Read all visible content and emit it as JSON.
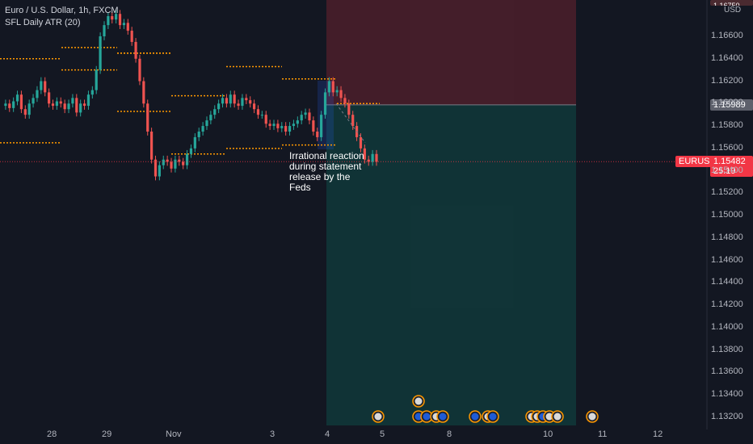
{
  "header": {
    "symbol_title": "Euro / U.S. Dollar, 1h, FXCM",
    "indicator": "SFL Daily ATR (20)"
  },
  "annotation": "Irrational reaction during statement release by the Feds",
  "price_axis": {
    "currency": "USD",
    "current_price": "1.15482",
    "countdown": "25:19",
    "symbol_tag": "EURUSD",
    "entry_price": "1.15989",
    "top_partial": "1.16750"
  },
  "colors": {
    "background": "#131722",
    "up": "#26a69a",
    "down": "#ef5350",
    "atr_line": "#ff9800",
    "stop_zone": "#f23645",
    "target_zone": "#089981"
  },
  "chart_data": {
    "type": "candlestick",
    "title": "Euro / U.S. Dollar, 1h, FXCM",
    "ylim": [
      1.131,
      1.1685
    ],
    "y_ticks": [
      "1.16600",
      "1.16400",
      "1.16200",
      "1.16000",
      "1.15800",
      "1.15600",
      "1.15400",
      "1.15200",
      "1.15000",
      "1.14800",
      "1.14600",
      "1.14400",
      "1.14200",
      "1.14000",
      "1.13800",
      "1.13600",
      "1.13400",
      "1.13200"
    ],
    "x_ticks": [
      "28",
      "29",
      "Nov",
      "3",
      "4",
      "5",
      "8",
      "10",
      "11",
      "12"
    ],
    "grid": false,
    "legend": "top-left",
    "last_price": 1.15482,
    "price_path": [
      1.1598,
      1.16,
      1.1596,
      1.1602,
      1.1608,
      1.1595,
      1.159,
      1.16,
      1.1605,
      1.1612,
      1.162,
      1.161,
      1.16,
      1.1598,
      1.1602,
      1.16,
      1.1595,
      1.16,
      1.1605,
      1.1592,
      1.16,
      1.1598,
      1.1608,
      1.1612,
      1.163,
      1.166,
      1.167,
      1.1678,
      1.1675,
      1.168,
      1.167,
      1.1672,
      1.1665,
      1.1655,
      1.164,
      1.162,
      1.16,
      1.1575,
      1.155,
      1.1535,
      1.1545,
      1.155,
      1.1548,
      1.1542,
      1.155,
      1.1548,
      1.1545,
      1.1555,
      1.156,
      1.157,
      1.1575,
      1.158,
      1.1585,
      1.159,
      1.1595,
      1.16,
      1.1605,
      1.16,
      1.1608,
      1.16,
      1.1598,
      1.1605,
      1.1603,
      1.16,
      1.1595,
      1.159,
      1.159,
      1.1582,
      1.158,
      1.1582,
      1.1578,
      1.158,
      1.1575,
      1.158,
      1.1582,
      1.1585,
      1.159,
      1.1592,
      1.1585,
      1.1575,
      1.157,
      1.159,
      1.161,
      1.162,
      1.161,
      1.1612,
      1.1605,
      1.16,
      1.159,
      1.158,
      1.157,
      1.156,
      1.155,
      1.1548,
      1.1555,
      1.1548
    ],
    "atr_levels": [
      {
        "price": 1.164,
        "from": "27",
        "to": "28"
      },
      {
        "price": 1.1565,
        "from": "27",
        "to": "28"
      },
      {
        "price": 1.165,
        "from": "28",
        "to": "29"
      },
      {
        "price": 1.163,
        "from": "28",
        "to": "29"
      },
      {
        "price": 1.1645,
        "from": "29",
        "to": "Nov"
      },
      {
        "price": 1.1645,
        "from": "Nov",
        "to": "1"
      },
      {
        "price": 1.1593,
        "from": "29",
        "to": "Nov"
      },
      {
        "price": 1.1607,
        "from": "Nov",
        "to": "1"
      },
      {
        "price": 1.1555,
        "from": "Nov",
        "to": "1"
      },
      {
        "price": 1.1633,
        "from": "2",
        "to": "3"
      },
      {
        "price": 1.156,
        "from": "2",
        "to": "3"
      },
      {
        "price": 1.1622,
        "from": "3",
        "to": "4"
      },
      {
        "price": 1.1563,
        "from": "3",
        "to": "4"
      },
      {
        "price": 1.16,
        "from": "4",
        "to": "5"
      }
    ],
    "position": {
      "entry": 1.15989,
      "stop_top": 1.1685,
      "target_bottom": 1.131
    }
  },
  "events": {
    "rows": [
      {
        "icons": [
          "us-flag-icon"
        ]
      },
      {
        "icons": [
          "us-flag-icon",
          "eu-flag-icon",
          "eu-flag-icon",
          "us-flag-icon",
          "eu-flag-icon",
          "eu-flag-icon",
          "us-flag-icon",
          "eu-flag-icon",
          "us-flag-icon",
          "us-flag-icon",
          "eu-flag-icon",
          "us-flag-icon",
          "us-flag-icon",
          "us-flag-icon"
        ]
      }
    ]
  }
}
